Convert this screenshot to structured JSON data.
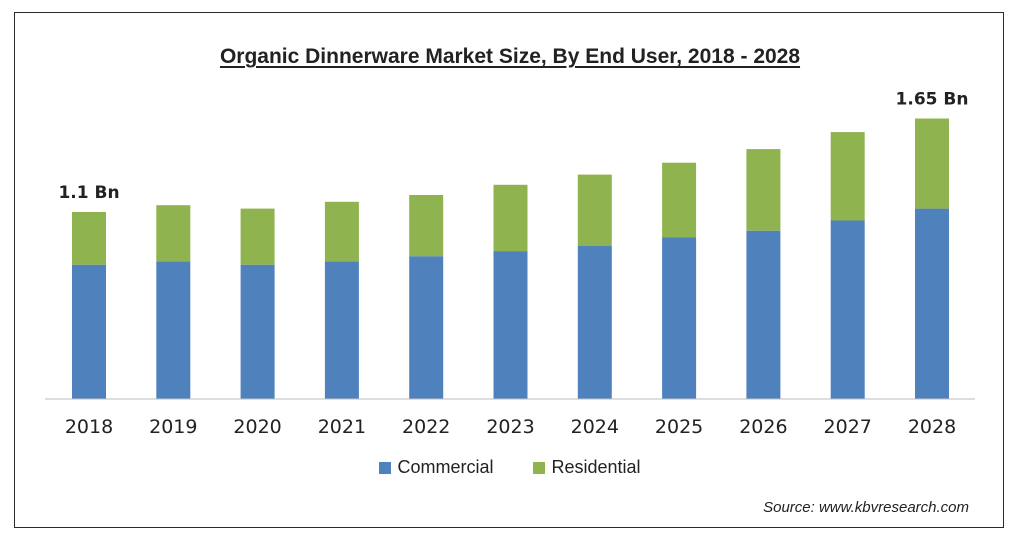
{
  "chart_data": {
    "type": "bar",
    "stacked": true,
    "title": "Organic Dinnerware Market Size, By End User, 2018 - 2028",
    "categories": [
      "2018",
      "2019",
      "2020",
      "2021",
      "2022",
      "2023",
      "2024",
      "2025",
      "2026",
      "2027",
      "2028"
    ],
    "series": [
      {
        "name": "Commercial",
        "values": [
          0.79,
          0.81,
          0.79,
          0.81,
          0.84,
          0.87,
          0.9,
          0.95,
          0.99,
          1.05,
          1.12
        ]
      },
      {
        "name": "Residential",
        "values": [
          0.31,
          0.33,
          0.33,
          0.35,
          0.36,
          0.39,
          0.42,
          0.44,
          0.48,
          0.52,
          0.53
        ]
      }
    ],
    "annotations": [
      {
        "category": "2018",
        "text": "1.1 Bn"
      },
      {
        "category": "2028",
        "text": "1.65 Bn"
      }
    ],
    "ylim": [
      0,
      1.8
    ],
    "xlabel": "",
    "ylabel": "",
    "grid": false,
    "legend_position": "bottom",
    "colors": {
      "Commercial": "#4f81bd",
      "Residential": "#8fb34f"
    }
  },
  "source_text": "Source:  www.kbvresearch.com"
}
